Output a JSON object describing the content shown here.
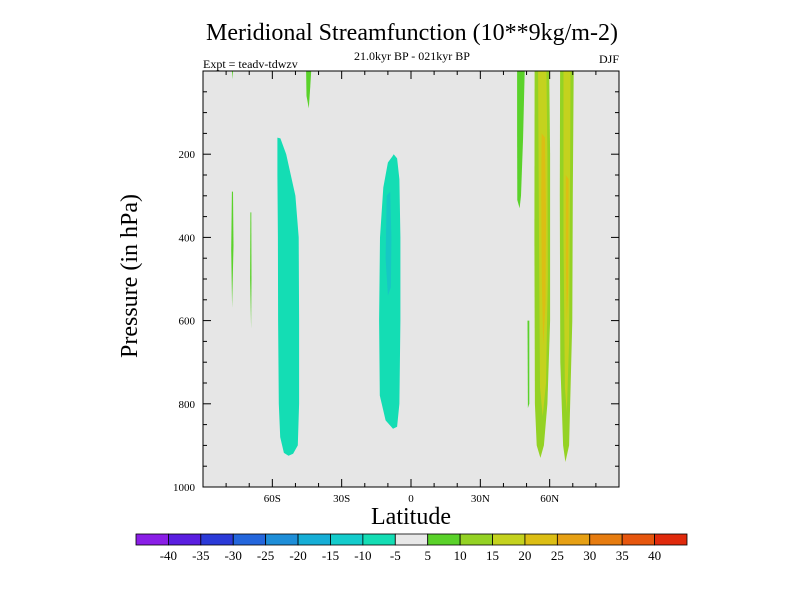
{
  "chart_data": {
    "type": "heatmap",
    "title": "Meridional Streamfunction (10**9kg/m-2)",
    "subtitle_left": "Expt = teadv-tdwzv",
    "subtitle_center": "21.0kyr BP - 021kyr BP",
    "subtitle_right": "DJF",
    "xlabel": "Latitude",
    "ylabel": "Pressure (in hPa)",
    "xlim": [
      -90,
      90
    ],
    "ylim": [
      0,
      1000
    ],
    "y_inverted": true,
    "x_ticks": [
      {
        "value": -60,
        "label": "60S"
      },
      {
        "value": -30,
        "label": "30S"
      },
      {
        "value": 0,
        "label": "0"
      },
      {
        "value": 30,
        "label": "30N"
      },
      {
        "value": 60,
        "label": "60N"
      }
    ],
    "y_ticks": [
      {
        "value": 200,
        "label": "200"
      },
      {
        "value": 400,
        "label": "400"
      },
      {
        "value": 600,
        "label": "600"
      },
      {
        "value": 800,
        "label": "800"
      },
      {
        "value": 1000,
        "label": "1000"
      }
    ],
    "background_color": "#e6e6e6",
    "colorbar": {
      "levels": [
        "-40",
        "-35",
        "-30",
        "-25",
        "-20",
        "-15",
        "-10",
        "-5",
        "5",
        "10",
        "15",
        "20",
        "25",
        "30",
        "35",
        "40"
      ],
      "colors": [
        "#8a1ee6",
        "#5a1ee0",
        "#2b3ad8",
        "#2466dc",
        "#1e8ed8",
        "#16aed6",
        "#14cccc",
        "#14ddb4",
        "#e8e8e8",
        "#5ad22a",
        "#94d224",
        "#c4d21e",
        "#dcbe14",
        "#e6a014",
        "#e67c10",
        "#e6560e",
        "#e02a0c"
      ]
    },
    "contours": [
      {
        "name": "sh-cell-60s",
        "value": -7,
        "color": "#14ddb4",
        "outline": [
          [
            -57.8,
            160
          ],
          [
            -56.5,
            162
          ],
          [
            -54,
            200
          ],
          [
            -50,
            300
          ],
          [
            -48.6,
            400
          ],
          [
            -48.4,
            600
          ],
          [
            -48.4,
            800
          ],
          [
            -49,
            900
          ],
          [
            -51,
            920
          ],
          [
            -53,
            925
          ],
          [
            -55,
            918
          ],
          [
            -56.6,
            880
          ],
          [
            -57.2,
            800
          ],
          [
            -57.5,
            600
          ],
          [
            -57.6,
            400
          ],
          [
            -57.8,
            250
          ]
        ]
      },
      {
        "name": "sh-cell-10s",
        "value": -7,
        "color": "#14ddb4",
        "outline": [
          [
            -8,
            205
          ],
          [
            -7.5,
            200
          ],
          [
            -6,
            210
          ],
          [
            -5,
            260
          ],
          [
            -4.6,
            400
          ],
          [
            -4.6,
            600
          ],
          [
            -5,
            800
          ],
          [
            -6,
            855
          ],
          [
            -7.8,
            860
          ],
          [
            -11,
            840
          ],
          [
            -13.5,
            780
          ],
          [
            -13.8,
            600
          ],
          [
            -13.4,
            400
          ],
          [
            -12,
            280
          ],
          [
            -10,
            220
          ]
        ]
      },
      {
        "name": "inner-10s",
        "value": -8,
        "color": "#16c8c4",
        "outline": [
          [
            -10.5,
            300
          ],
          [
            -9,
            290
          ],
          [
            -8.5,
            400
          ],
          [
            -8.7,
            520
          ],
          [
            -10,
            540
          ],
          [
            -11,
            450
          ]
        ]
      },
      {
        "name": "nh-band-48n",
        "value": 7,
        "color": "#5ad22a",
        "outline": [
          [
            45.9,
            0
          ],
          [
            49.2,
            0
          ],
          [
            48.5,
            160
          ],
          [
            47.6,
            300
          ],
          [
            47,
            330
          ],
          [
            46,
            310
          ],
          [
            45.9,
            150
          ]
        ]
      },
      {
        "name": "nh-band-51n",
        "value": 7,
        "color": "#5ad22a",
        "outline": [
          [
            50.4,
            600
          ],
          [
            51.2,
            600
          ],
          [
            51.2,
            800
          ],
          [
            50.6,
            810
          ]
        ]
      },
      {
        "name": "nh-band-58n",
        "value": 12,
        "color": "#94d224",
        "outline": [
          [
            53.5,
            0
          ],
          [
            59.8,
            0
          ],
          [
            60.2,
            200
          ],
          [
            60.2,
            600
          ],
          [
            59,
            800
          ],
          [
            57.5,
            900
          ],
          [
            56,
            930
          ],
          [
            54.4,
            900
          ],
          [
            53.6,
            800
          ],
          [
            53.4,
            400
          ]
        ]
      },
      {
        "name": "nh-band-58n-inner",
        "value": 17,
        "color": "#c4d21e",
        "outline": [
          [
            55,
            0
          ],
          [
            58.6,
            0
          ],
          [
            59,
            200
          ],
          [
            59.2,
            500
          ],
          [
            58.4,
            750
          ],
          [
            57,
            830
          ],
          [
            55.8,
            760
          ],
          [
            55.4,
            400
          ]
        ]
      },
      {
        "name": "nh-band-58n-core",
        "value": 22,
        "color": "#dcbe14",
        "outline": [
          [
            56.5,
            150
          ],
          [
            58,
            160
          ],
          [
            58.4,
            350
          ],
          [
            58.2,
            560
          ],
          [
            57.2,
            660
          ],
          [
            56.6,
            500
          ],
          [
            56.4,
            300
          ]
        ]
      },
      {
        "name": "nh-band-66n",
        "value": 12,
        "color": "#94d224",
        "outline": [
          [
            64.5,
            0
          ],
          [
            70.4,
            0
          ],
          [
            70,
            300
          ],
          [
            69.8,
            600
          ],
          [
            68.4,
            900
          ],
          [
            66.8,
            940
          ],
          [
            65.8,
            900
          ],
          [
            64.6,
            700
          ],
          [
            64.4,
            300
          ]
        ]
      },
      {
        "name": "nh-band-66n-inner",
        "value": 17,
        "color": "#c4d21e",
        "outline": [
          [
            66,
            0
          ],
          [
            69,
            0
          ],
          [
            68.8,
            300
          ],
          [
            68.4,
            650
          ],
          [
            67.4,
            820
          ],
          [
            66.6,
            760
          ],
          [
            66,
            400
          ]
        ]
      },
      {
        "name": "nh-band-66n-core",
        "value": 22,
        "color": "#dcbe14",
        "outline": [
          [
            67,
            250
          ],
          [
            68.2,
            260
          ],
          [
            68,
            520
          ],
          [
            67.4,
            600
          ],
          [
            67,
            450
          ]
        ]
      },
      {
        "name": "left-sliver-a",
        "value": 6,
        "color": "#5ad22a",
        "outline": [
          [
            -77.5,
            290
          ],
          [
            -77,
            290
          ],
          [
            -76.8,
            420
          ],
          [
            -77.4,
            570
          ],
          [
            -77.8,
            430
          ]
        ]
      },
      {
        "name": "left-sliver-b",
        "value": 6,
        "color": "#5ad22a",
        "outline": [
          [
            -69.5,
            340
          ],
          [
            -69.1,
            340
          ],
          [
            -69,
            500
          ],
          [
            -69.2,
            620
          ],
          [
            -69.6,
            500
          ]
        ]
      },
      {
        "name": "top-sliver-a",
        "value": 6,
        "color": "#5ad22a",
        "outline": [
          [
            -45.4,
            0
          ],
          [
            -43.2,
            0
          ],
          [
            -43.6,
            40
          ],
          [
            -44.2,
            90
          ],
          [
            -45.2,
            60
          ]
        ]
      },
      {
        "name": "top-sliver-b",
        "value": 6,
        "color": "#5ad22a",
        "outline": [
          [
            -77.5,
            0
          ],
          [
            -77,
            0
          ],
          [
            -77.2,
            20
          ]
        ]
      }
    ]
  }
}
